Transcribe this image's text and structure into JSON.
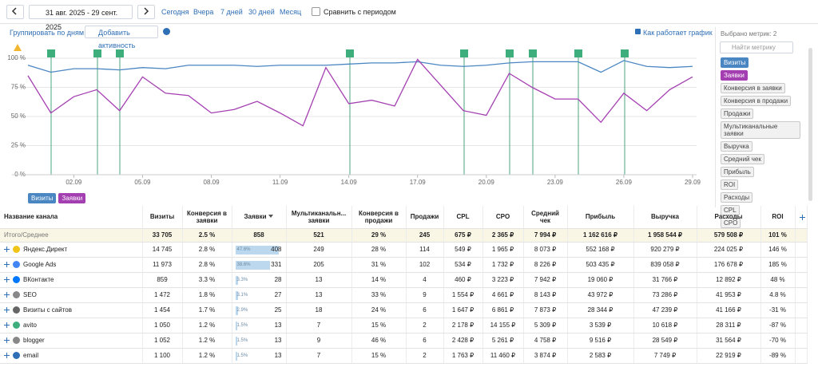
{
  "toolbar": {
    "date_range": "31 авг. 2025 - 29 сент. 2025",
    "presets": [
      "Сегодня",
      "Вчера",
      "7 дней",
      "30 дней",
      "Месяц"
    ],
    "compare": "Сравнить с периодом"
  },
  "chart_toolbar": {
    "group_by": "Группировать по дням",
    "add_activity": "Добавить активность",
    "help": "Как работает график"
  },
  "chart_data": {
    "type": "line",
    "categories": [
      null,
      null,
      "02.09",
      null,
      null,
      "05.09",
      null,
      null,
      "08.09",
      null,
      null,
      "11.09",
      null,
      null,
      "14.09",
      null,
      null,
      "17.09",
      null,
      null,
      "20.09",
      null,
      null,
      "23.09",
      null,
      null,
      "26.09",
      null,
      null,
      "29.09"
    ],
    "series": [
      {
        "name": "Визиты",
        "color": "#4a86c2",
        "values": [
          94,
          88,
          91,
          91,
          90,
          92,
          91,
          94,
          94,
          94,
          93,
          94,
          94,
          94,
          95,
          96,
          96,
          97,
          94,
          93,
          94,
          96,
          97,
          97,
          97,
          88,
          98,
          93,
          92,
          93
        ]
      },
      {
        "name": "Заявки",
        "color": "#a43fb1",
        "values": [
          85,
          53,
          67,
          73,
          55,
          84,
          70,
          68,
          53,
          56,
          63,
          53,
          42,
          92,
          61,
          64,
          59,
          99,
          77,
          55,
          51,
          87,
          75,
          65,
          65,
          45,
          70,
          55,
          73,
          84
        ]
      }
    ],
    "ylim": [
      0,
      100
    ],
    "yticks": [
      {
        "value": 0,
        "label": "0 %"
      },
      {
        "value": 25,
        "label": "25 %"
      },
      {
        "value": 50,
        "label": "50 %"
      },
      {
        "value": 75,
        "label": "75 %"
      },
      {
        "value": 100,
        "label": "100 %"
      }
    ],
    "grid": true
  },
  "metrics_panel": {
    "selected": "Выбрано метрик: 2",
    "search_placeholder": "Найти метрику",
    "metrics": [
      "Конверсия в заявки",
      "Конверсия в продажи",
      "Продажи",
      "Мультиканальные заявки",
      "Выручка",
      "Средний чек",
      "Прибыль",
      "ROI",
      "Расходы",
      "CPL",
      "CPO"
    ]
  },
  "table": {
    "header": [
      "Название канала",
      "Визиты",
      "Конверсия в заявки",
      "Заявки",
      "Мультиканальн... заявки",
      "Конверсия в продажи",
      "Продажи",
      "CPL",
      "CPO",
      "Средний чек",
      "Прибыль",
      "Выручка",
      "Расходы",
      "ROI"
    ],
    "total": {
      "name": "Итого/Среднее",
      "cells": [
        "33 705",
        "2.5 %",
        "858",
        "521",
        "29 %",
        "245",
        "675 ₽",
        "2 365 ₽",
        "7 994 ₽",
        "1 162 616 ₽",
        "1 958 544 ₽",
        "579 508 ₽",
        "101 %"
      ]
    },
    "rows": [
      {
        "name": "Яндекс.Директ",
        "share": "47.6%",
        "cells": [
          "14 745",
          "2.8 %",
          "408",
          "249",
          "28 %",
          "114",
          "549 ₽",
          "1 965 ₽",
          "8 073 ₽",
          "552 168 ₽",
          "920 279 ₽",
          "224 025 ₽",
          "146 %"
        ]
      },
      {
        "name": "Google Ads",
        "share": "38.6%",
        "cells": [
          "11 973",
          "2.8 %",
          "331",
          "205",
          "31 %",
          "102",
          "534 ₽",
          "1 732 ₽",
          "8 226 ₽",
          "503 435 ₽",
          "839 058 ₽",
          "176 678 ₽",
          "185 %"
        ]
      },
      {
        "name": "ВКонтакте",
        "share": "3.3%",
        "cells": [
          "859",
          "3.3 %",
          "28",
          "13",
          "14 %",
          "4",
          "460 ₽",
          "3 223 ₽",
          "7 942 ₽",
          "19 060 ₽",
          "31 766 ₽",
          "12 892 ₽",
          "48 %"
        ]
      },
      {
        "name": "SEO",
        "share": "3.1%",
        "cells": [
          "1 472",
          "1.8 %",
          "27",
          "13",
          "33 %",
          "9",
          "1 554 ₽",
          "4 661 ₽",
          "8 143 ₽",
          "43 972 ₽",
          "73 286 ₽",
          "41 953 ₽",
          "4.8 %"
        ]
      },
      {
        "name": "Визиты с сайтов",
        "share": "2.9%",
        "cells": [
          "1 454",
          "1.7 %",
          "25",
          "18",
          "24 %",
          "6",
          "1 647 ₽",
          "6 861 ₽",
          "7 873 ₽",
          "28 344 ₽",
          "47 239 ₽",
          "41 166 ₽",
          "-31 %"
        ]
      },
      {
        "name": "avito",
        "share": "1.5%",
        "cells": [
          "1 050",
          "1.2 %",
          "13",
          "7",
          "15 %",
          "2",
          "2 178 ₽",
          "14 155 ₽",
          "5 309 ₽",
          "3 539 ₽",
          "10 618 ₽",
          "28 311 ₽",
          "-87 %"
        ]
      },
      {
        "name": "blogger",
        "share": "1.5%",
        "cells": [
          "1 052",
          "1.2 %",
          "13",
          "9",
          "46 %",
          "6",
          "2 428 ₽",
          "5 261 ₽",
          "4 758 ₽",
          "9 516 ₽",
          "28 549 ₽",
          "31 564 ₽",
          "-70 %"
        ]
      },
      {
        "name": "email",
        "share": "1.5%",
        "cells": [
          "1 100",
          "1.2 %",
          "13",
          "7",
          "15 %",
          "2",
          "1 763 ₽",
          "11 460 ₽",
          "3 874 ₽",
          "2 583 ₽",
          "7 749 ₽",
          "22 919 ₽",
          "-89 %"
        ]
      }
    ]
  }
}
